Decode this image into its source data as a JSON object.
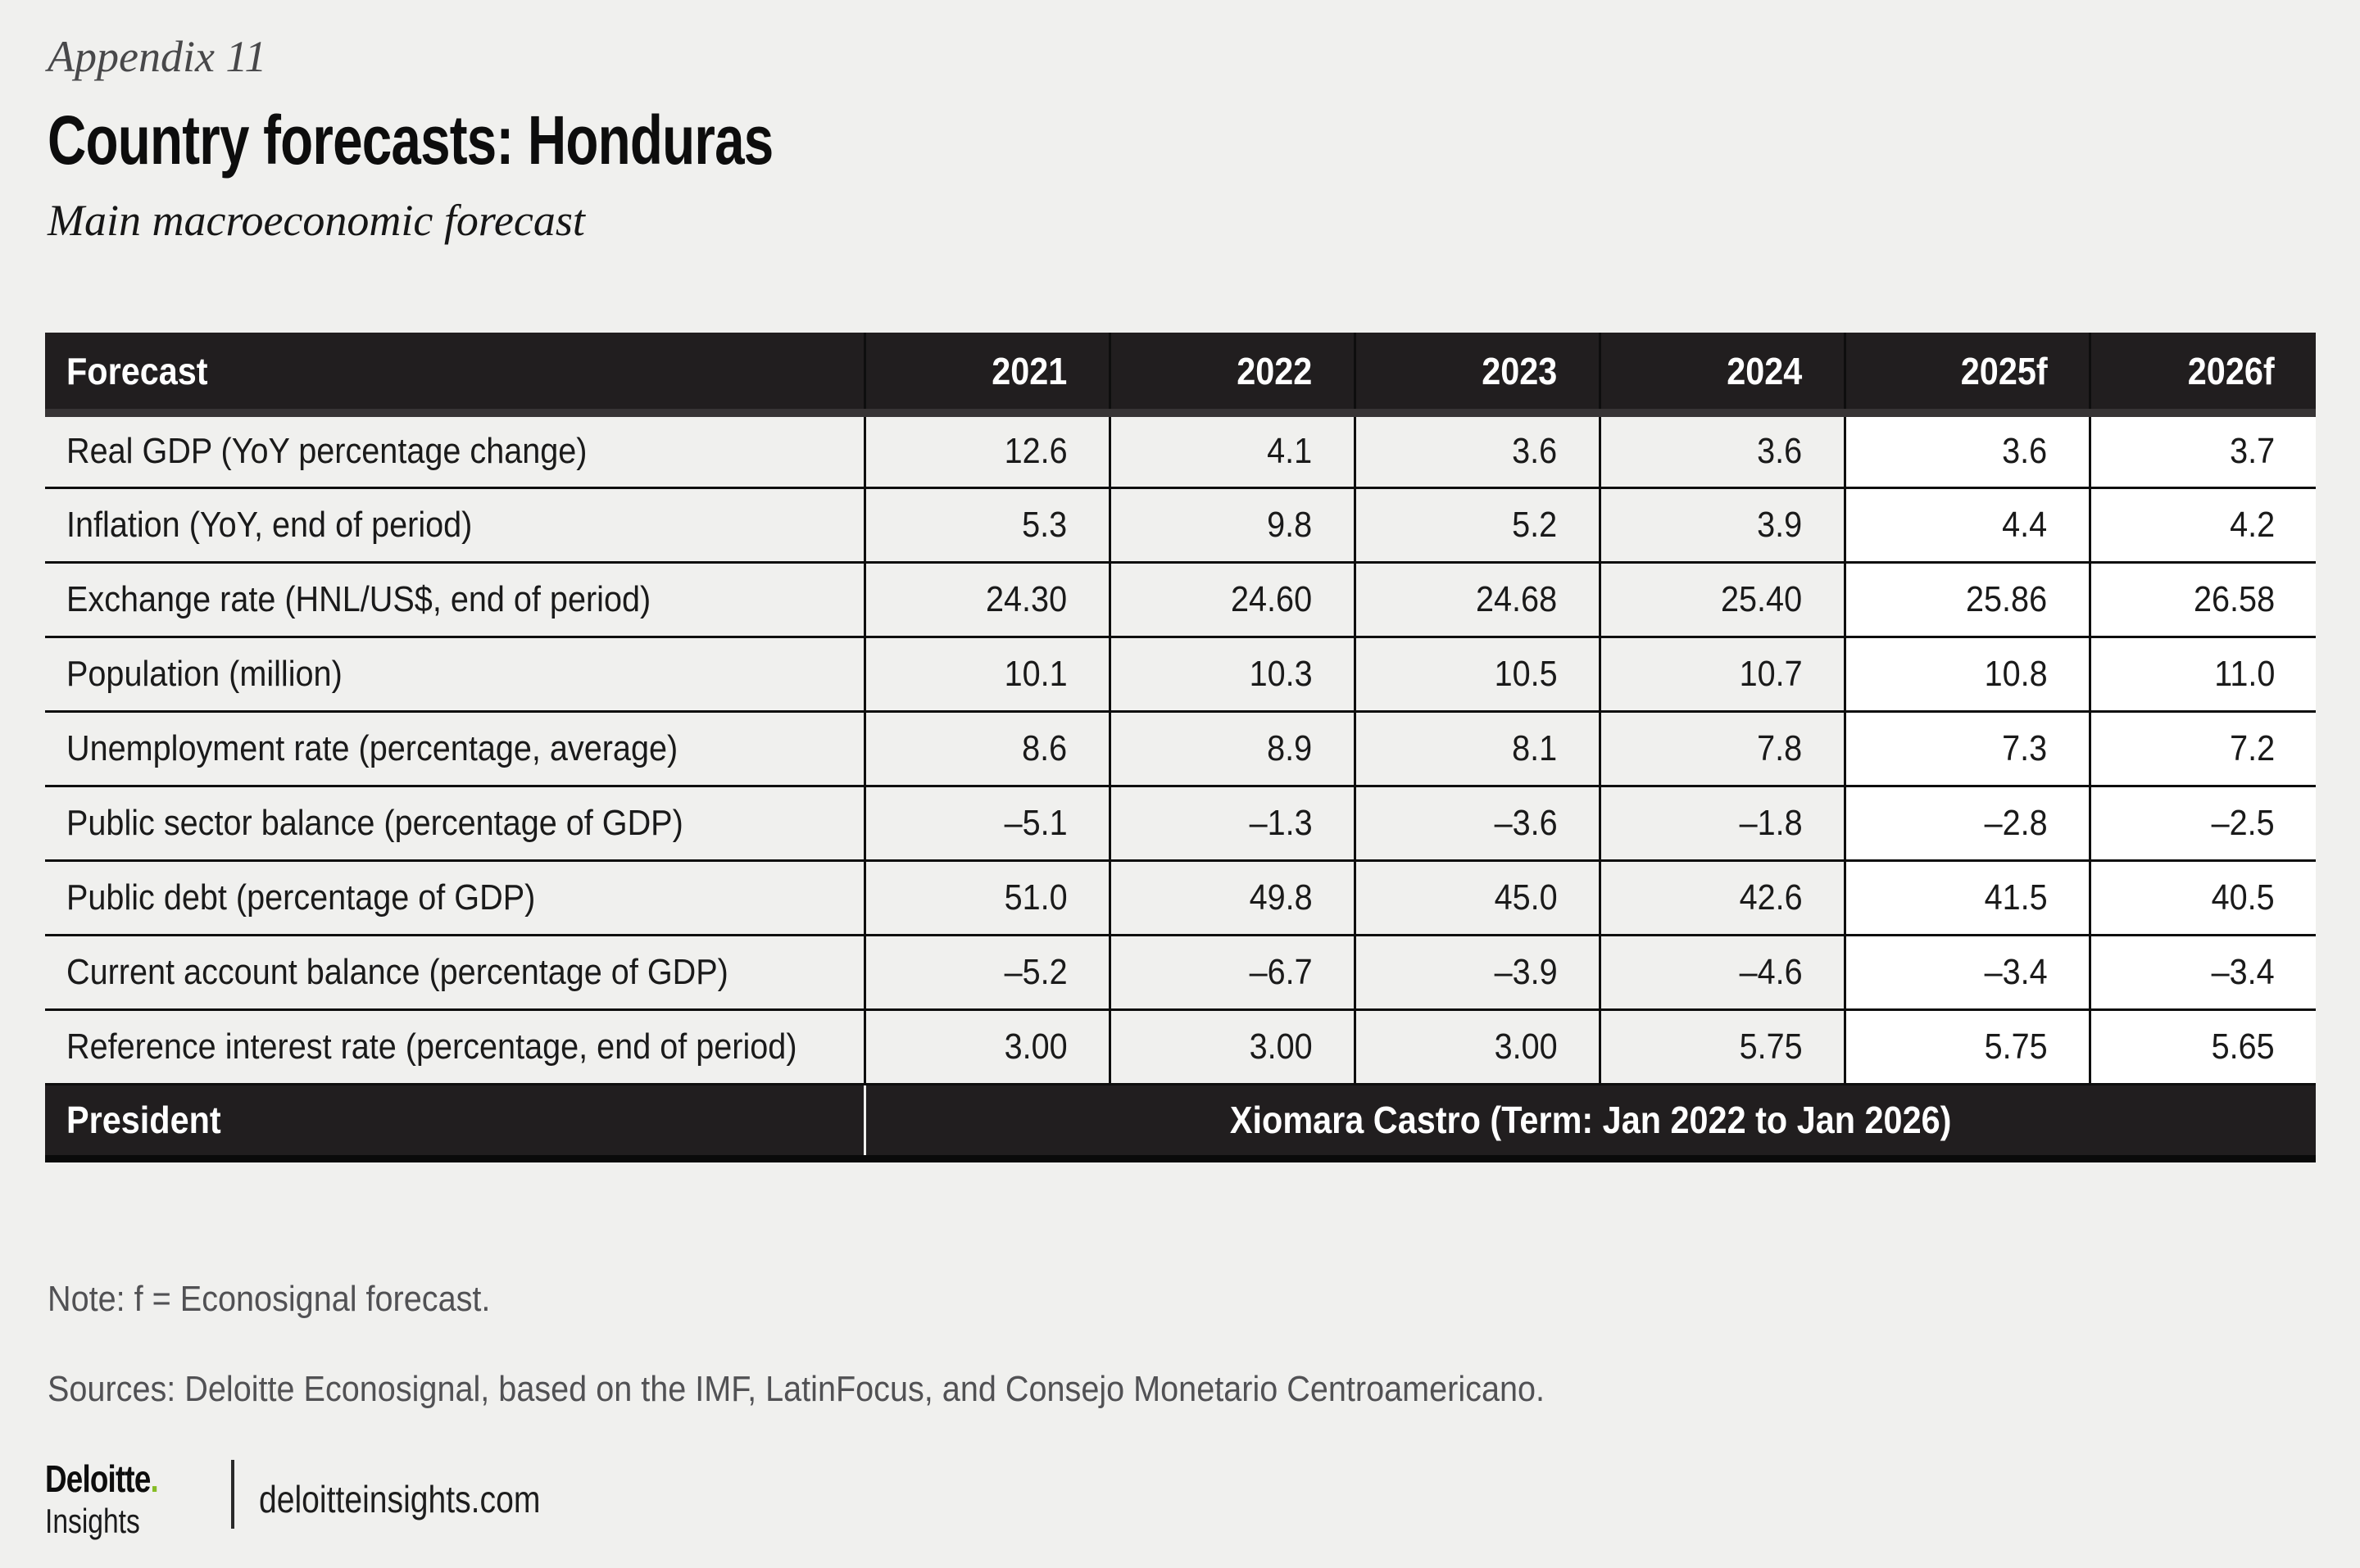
{
  "page": {
    "appendix": "Appendix 11",
    "title": "Country forecasts: Honduras",
    "subtitle": "Main macroeconomic forecast",
    "note": "Note: f = Econosignal forecast.",
    "sources": "Sources: Deloitte Econosignal, based on the IMF, LatinFocus, and Consejo Monetario Centroamericano."
  },
  "table": {
    "forecast_start": 4,
    "header": {
      "label": "Forecast",
      "years": [
        "2021",
        "2022",
        "2023",
        "2024",
        "2025f",
        "2026f"
      ]
    },
    "rows": [
      {
        "label": "Real GDP (YoY percentage change)",
        "values": [
          "12.6",
          "4.1",
          "3.6",
          "3.6",
          "3.6",
          "3.7"
        ]
      },
      {
        "label": "Inflation (YoY, end of period)",
        "values": [
          "5.3",
          "9.8",
          "5.2",
          "3.9",
          "4.4",
          "4.2"
        ]
      },
      {
        "label": "Exchange rate (HNL/US$, end of period)",
        "values": [
          "24.30",
          "24.60",
          "24.68",
          "25.40",
          "25.86",
          "26.58"
        ]
      },
      {
        "label": "Population (million)",
        "values": [
          "10.1",
          "10.3",
          "10.5",
          "10.7",
          "10.8",
          "11.0"
        ]
      },
      {
        "label": "Unemployment rate (percentage, average)",
        "values": [
          "8.6",
          "8.9",
          "8.1",
          "7.8",
          "7.3",
          "7.2"
        ]
      },
      {
        "label": "Public sector balance (percentage of GDP)",
        "values": [
          "–5.1",
          "–1.3",
          "–3.6",
          "–1.8",
          "–2.8",
          "–2.5"
        ]
      },
      {
        "label": "Public debt (percentage of GDP)",
        "values": [
          "51.0",
          "49.8",
          "45.0",
          "42.6",
          "41.5",
          "40.5"
        ]
      },
      {
        "label": "Current account balance (percentage of GDP)",
        "values": [
          "–5.2",
          "–6.7",
          "–3.9",
          "–4.6",
          "–3.4",
          "–3.4"
        ]
      },
      {
        "label": "Reference interest rate (percentage, end of period)",
        "values": [
          "3.00",
          "3.00",
          "3.00",
          "5.75",
          "5.75",
          "5.65"
        ]
      }
    ],
    "president": {
      "label": "President",
      "value": "Xiomara Castro (Term: Jan 2022 to Jan 2026)"
    }
  },
  "footer": {
    "brand": "Deloitte",
    "brand_dot": ".",
    "brand_sub": "Insights",
    "site": "deloitteinsights.com"
  },
  "colors": {
    "page_bg": "#F0F0EE",
    "table_header_bg": "#211E1F",
    "grid_line": "#0E0E0E",
    "year_col_bg": "#F0F0EE",
    "forecast_col_bg": "#FFFFFF",
    "header_text": "#FFFFFF",
    "muted_text": "#515154",
    "brand_green": "#86BC25"
  }
}
